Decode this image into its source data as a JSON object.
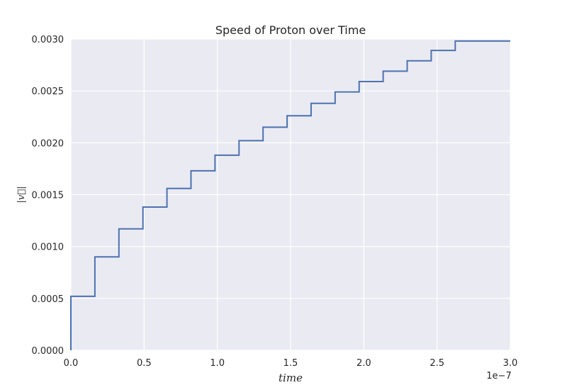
{
  "chart_data": {
    "type": "line",
    "step": true,
    "title": "Speed of Proton over Time",
    "xlabel": "time",
    "ylabel": "|v⃗|",
    "x_offset_label": "1e−7",
    "xlim": [
      0.0,
      3e-07
    ],
    "ylim": [
      0.0,
      0.003
    ],
    "x_ticks": [
      0.0,
      5e-08,
      1e-07,
      1.5e-07,
      2e-07,
      2.5e-07,
      3e-07
    ],
    "x_tick_labels": [
      "0.0",
      "0.5",
      "1.0",
      "1.5",
      "2.0",
      "2.5",
      "3.0"
    ],
    "y_ticks": [
      0.0,
      0.0005,
      0.001,
      0.0015,
      0.002,
      0.0025,
      0.003
    ],
    "y_tick_labels": [
      "0.0000",
      "0.0005",
      "0.0010",
      "0.0015",
      "0.0020",
      "0.0025",
      "0.0030"
    ],
    "grid": true,
    "colors": {
      "background": "#eaeaf2",
      "grid": "#ffffff",
      "line": "#4c72b0"
    },
    "series": [
      {
        "x": [
          0.0,
          0.0,
          1.64e-08,
          3.28e-08,
          4.92e-08,
          6.56e-08,
          8.2e-08,
          9.84e-08,
          1.148e-07,
          1.312e-07,
          1.476e-07,
          1.64e-07,
          1.804e-07,
          1.968e-07,
          2.132e-07,
          2.296e-07,
          2.46e-07,
          2.624e-07,
          3e-07
        ],
        "y": [
          0.0,
          0.00052,
          0.0009,
          0.00117,
          0.00138,
          0.00156,
          0.00173,
          0.00188,
          0.00202,
          0.00215,
          0.00226,
          0.00238,
          0.00249,
          0.00259,
          0.00269,
          0.00279,
          0.00289,
          0.00298,
          0.00298
        ]
      }
    ]
  }
}
